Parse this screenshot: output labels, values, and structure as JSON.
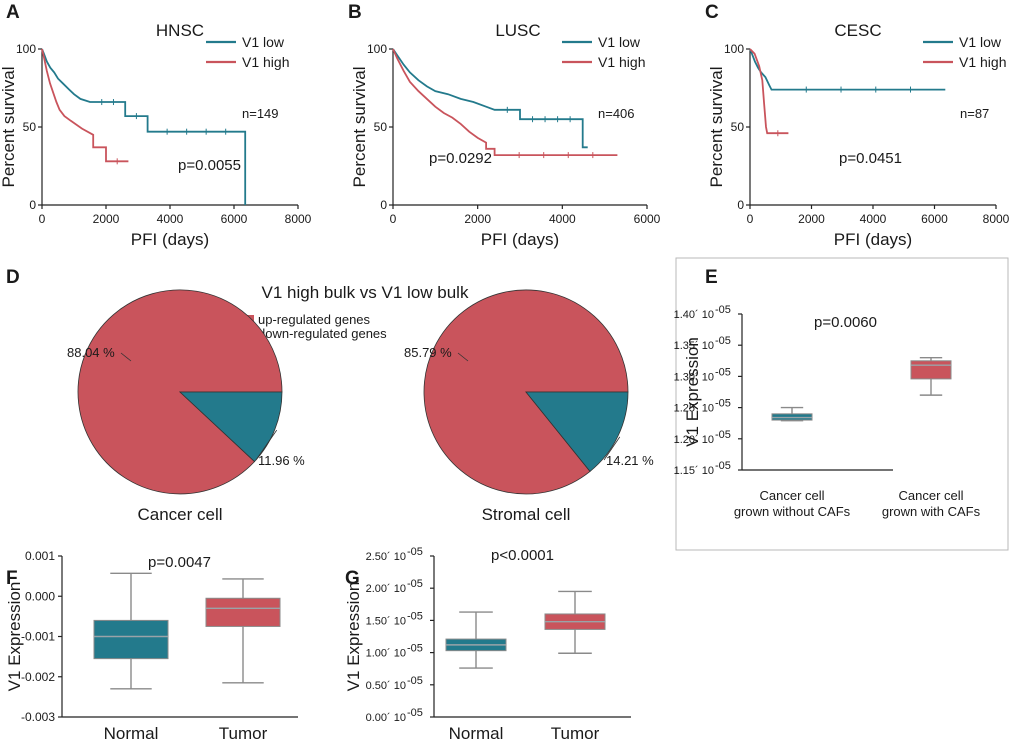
{
  "colors": {
    "low": "#237a8c",
    "high": "#c9545c",
    "median": "#9aa3a8",
    "whisker": "#8a8a8a"
  },
  "chart_data": [
    {
      "panel": "A",
      "type": "line",
      "title": "HNSC",
      "xlabel": "PFI (days)",
      "ylabel": "Percent survival",
      "xlim": [
        0,
        8000
      ],
      "ylim": [
        0,
        100
      ],
      "xticks": [
        "0",
        "2000",
        "4000",
        "6000",
        "8000"
      ],
      "yticks": [
        "0",
        "50",
        "100"
      ],
      "legend": [
        "V1 low",
        "V1 high"
      ],
      "n": "n=149",
      "p": "p=0.0055",
      "series": [
        {
          "name": "V1 low",
          "points": [
            [
              0,
              100
            ],
            [
              60,
              97
            ],
            [
              150,
              92
            ],
            [
              260,
              88
            ],
            [
              380,
              85
            ],
            [
              500,
              81
            ],
            [
              650,
              78
            ],
            [
              850,
              74
            ],
            [
              1000,
              71
            ],
            [
              1200,
              68
            ],
            [
              1500,
              66
            ],
            [
              2600,
              66
            ],
            [
              2600,
              57
            ],
            [
              3300,
              57
            ],
            [
              3300,
              47
            ],
            [
              6350,
              47
            ],
            [
              6350,
              0
            ]
          ]
        },
        {
          "name": "V1 high",
          "points": [
            [
              0,
              100
            ],
            [
              70,
              94
            ],
            [
              150,
              86
            ],
            [
              250,
              78
            ],
            [
              350,
              72
            ],
            [
              450,
              66
            ],
            [
              550,
              61
            ],
            [
              700,
              57
            ],
            [
              900,
              54
            ],
            [
              1250,
              49
            ],
            [
              1600,
              45
            ],
            [
              1600,
              37
            ],
            [
              2000,
              37
            ],
            [
              2000,
              28
            ],
            [
              2700,
              28
            ]
          ]
        }
      ]
    },
    {
      "panel": "B",
      "type": "line",
      "title": "LUSC",
      "xlabel": "PFI (days)",
      "ylabel": "Percent survival",
      "xlim": [
        0,
        6000
      ],
      "ylim": [
        0,
        100
      ],
      "xticks": [
        "0",
        "2000",
        "4000",
        "6000"
      ],
      "yticks": [
        "0",
        "50",
        "100"
      ],
      "legend": [
        "V1 low",
        "V1 high"
      ],
      "n": "n=406",
      "p": "p=0.0292",
      "series": [
        {
          "name": "V1 low",
          "points": [
            [
              0,
              100
            ],
            [
              100,
              96
            ],
            [
              250,
              90
            ],
            [
              400,
              85
            ],
            [
              600,
              80
            ],
            [
              800,
              76
            ],
            [
              1000,
              73
            ],
            [
              1300,
              71
            ],
            [
              1600,
              68
            ],
            [
              1900,
              66
            ],
            [
              2200,
              63
            ],
            [
              2400,
              61
            ],
            [
              3000,
              61
            ],
            [
              3000,
              55
            ],
            [
              4480,
              55
            ],
            [
              4480,
              37
            ],
            [
              4600,
              37
            ]
          ]
        },
        {
          "name": "V1 high",
          "points": [
            [
              0,
              100
            ],
            [
              100,
              94
            ],
            [
              250,
              86
            ],
            [
              400,
              79
            ],
            [
              600,
              73
            ],
            [
              800,
              68
            ],
            [
              1000,
              63
            ],
            [
              1200,
              59
            ],
            [
              1400,
              56
            ],
            [
              1600,
              52
            ],
            [
              1800,
              47
            ],
            [
              2000,
              43
            ],
            [
              2200,
              40
            ],
            [
              2200,
              36
            ],
            [
              2400,
              36
            ],
            [
              2400,
              32
            ],
            [
              5300,
              32
            ]
          ]
        }
      ]
    },
    {
      "panel": "C",
      "type": "line",
      "title": "CESC",
      "xlabel": "PFI (days)",
      "ylabel": "Percent survival",
      "xlim": [
        0,
        8000
      ],
      "ylim": [
        0,
        100
      ],
      "xticks": [
        "0",
        "2000",
        "4000",
        "6000",
        "8000"
      ],
      "yticks": [
        "0",
        "50",
        "100"
      ],
      "legend": [
        "V1 low",
        "V1 high"
      ],
      "n": "n=87",
      "p": "p=0.0451",
      "series": [
        {
          "name": "V1 low",
          "points": [
            [
              0,
              100
            ],
            [
              80,
              96
            ],
            [
              160,
              92
            ],
            [
              260,
              88
            ],
            [
              360,
              85
            ],
            [
              500,
              82
            ],
            [
              620,
              77
            ],
            [
              700,
              74
            ],
            [
              6350,
              74
            ]
          ]
        },
        {
          "name": "V1 high",
          "points": [
            [
              0,
              100
            ],
            [
              150,
              97
            ],
            [
              300,
              89
            ],
            [
              400,
              80
            ],
            [
              460,
              65
            ],
            [
              520,
              50
            ],
            [
              560,
              46
            ],
            [
              1250,
              46
            ]
          ]
        }
      ]
    },
    {
      "panel": "D",
      "type": "pie",
      "title": "V1 high bulk vs V1 low bulk",
      "legend": [
        "up-regulated genes",
        "down-regulated genes"
      ],
      "pies": [
        {
          "name": "Cancer cell",
          "values": [
            88.04,
            11.96
          ],
          "labels": [
            "88.04 %",
            "11.96 %"
          ]
        },
        {
          "name": "Stromal cell",
          "values": [
            85.79,
            14.21
          ],
          "labels": [
            "85.79 %",
            "14.21 %"
          ]
        }
      ]
    },
    {
      "panel": "E",
      "type": "box",
      "ylabel": "V1 Expression",
      "p": "p=0.0060",
      "ylim": [
        1.15e-05,
        1.4e-05
      ],
      "yticks": [
        {
          "v": 1.15e-05,
          "label": "1.15´ 10"
        },
        {
          "v": 1.2e-05,
          "label": "1.20´ 10"
        },
        {
          "v": 1.25e-05,
          "label": "1.25´ 10"
        },
        {
          "v": 1.3e-05,
          "label": "1.30´ 10"
        },
        {
          "v": 1.35e-05,
          "label": "1.35´ 10"
        },
        {
          "v": 1.4e-05,
          "label": "1.40´ 10"
        }
      ],
      "exp": "-05",
      "categories": [
        [
          "Cancer cell",
          "grown without CAFs"
        ],
        [
          "Cancer cell",
          "grown with CAFs"
        ]
      ],
      "boxes": [
        {
          "min": 1.229e-05,
          "q1": 1.23e-05,
          "median": 1.234e-05,
          "q3": 1.24e-05,
          "max": 1.25e-05
        },
        {
          "min": 1.27e-05,
          "q1": 1.296e-05,
          "median": 1.318e-05,
          "q3": 1.325e-05,
          "max": 1.33e-05
        }
      ]
    },
    {
      "panel": "F",
      "type": "box",
      "ylabel": "V1 Expression",
      "p": "p=0.0047",
      "ylim": [
        -0.003,
        0.001
      ],
      "yticks": [
        {
          "v": 0.001,
          "label": "0.001"
        },
        {
          "v": 0.0,
          "label": "0.000"
        },
        {
          "v": -0.001,
          "label": "-0.001"
        },
        {
          "v": -0.002,
          "label": "-0.002"
        },
        {
          "v": -0.003,
          "label": "-0.003"
        }
      ],
      "categories": [
        [
          "Normal"
        ],
        [
          "Tumor"
        ]
      ],
      "boxes": [
        {
          "min": -0.0023,
          "q1": -0.00155,
          "median": -0.001,
          "q3": -0.0006,
          "max": 0.00057
        },
        {
          "min": -0.00215,
          "q1": -0.00075,
          "median": -0.0003,
          "q3": -5e-05,
          "max": 0.00043
        }
      ]
    },
    {
      "panel": "G",
      "type": "box",
      "ylabel": "V1 Expression",
      "p": "p<0.0001",
      "ylim": [
        0,
        2.5e-05
      ],
      "yticks": [
        {
          "v": 2.5e-05,
          "label": "2.50´ 10"
        },
        {
          "v": 2e-05,
          "label": "2.00´ 10"
        },
        {
          "v": 1.5e-05,
          "label": "1.50´ 10"
        },
        {
          "v": 1e-05,
          "label": "1.00´ 10"
        },
        {
          "v": 5e-06,
          "label": "0.50´ 10"
        },
        {
          "v": 0,
          "label": "0.00´ 10"
        }
      ],
      "exp": "-05",
      "categories": [
        [
          "Normal"
        ],
        [
          "Tumor"
        ]
      ],
      "boxes": [
        {
          "min": 7.6e-06,
          "q1": 1.03e-05,
          "median": 1.12e-05,
          "q3": 1.21e-05,
          "max": 1.63e-05
        },
        {
          "min": 9.9e-06,
          "q1": 1.36e-05,
          "median": 1.48e-05,
          "q3": 1.6e-05,
          "max": 1.95e-05
        }
      ]
    }
  ]
}
